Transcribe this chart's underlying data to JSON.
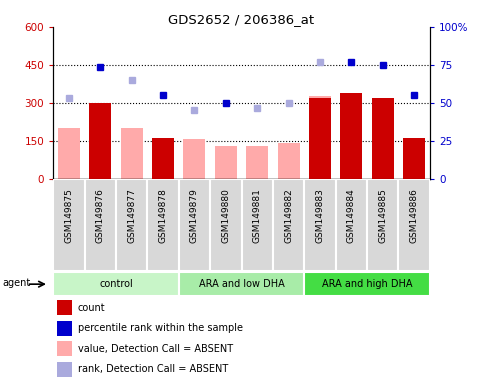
{
  "title": "GDS2652 / 206386_at",
  "samples": [
    "GSM149875",
    "GSM149876",
    "GSM149877",
    "GSM149878",
    "GSM149879",
    "GSM149880",
    "GSM149881",
    "GSM149882",
    "GSM149883",
    "GSM149884",
    "GSM149885",
    "GSM149886"
  ],
  "count_values": [
    0,
    300,
    0,
    160,
    0,
    0,
    0,
    0,
    320,
    340,
    320,
    160
  ],
  "count_absent": [
    true,
    false,
    true,
    false,
    true,
    true,
    true,
    true,
    false,
    false,
    false,
    false
  ],
  "absent_bar_values": [
    200,
    0,
    200,
    0,
    155,
    130,
    130,
    140,
    325,
    0,
    0,
    160
  ],
  "percentile_rank_present": [
    0,
    440,
    0,
    330,
    0,
    300,
    0,
    0,
    0,
    460,
    450,
    330
  ],
  "percentile_rank_absent": [
    320,
    0,
    390,
    0,
    270,
    0,
    280,
    300,
    460,
    0,
    0,
    0
  ],
  "groups": [
    {
      "label": "control",
      "start": 0,
      "end": 3,
      "color": "#c8f5c8"
    },
    {
      "label": "ARA and low DHA",
      "start": 4,
      "end": 7,
      "color": "#a8eca8"
    },
    {
      "label": "ARA and high DHA",
      "start": 8,
      "end": 11,
      "color": "#44dd44"
    }
  ],
  "ylim_left": [
    0,
    600
  ],
  "yticks_left": [
    0,
    150,
    300,
    450,
    600
  ],
  "ytick_labels_left": [
    "0",
    "150",
    "300",
    "450",
    "600"
  ],
  "yticks_right": [
    0,
    25,
    50,
    75,
    100
  ],
  "ytick_labels_right": [
    "0",
    "25",
    "50",
    "75",
    "100%"
  ],
  "dotted_lines": [
    150,
    300,
    450
  ],
  "bar_width": 0.7,
  "bar_color_present": "#cc0000",
  "bar_color_absent": "#ffaaaa",
  "dot_color_present": "#0000cc",
  "dot_color_absent": "#aaaadd",
  "agent_label": "agent",
  "legend_items": [
    {
      "color": "#cc0000",
      "marker": "rect",
      "label": "count"
    },
    {
      "color": "#0000cc",
      "marker": "rect",
      "label": "percentile rank within the sample"
    },
    {
      "color": "#ffaaaa",
      "marker": "rect",
      "label": "value, Detection Call = ABSENT"
    },
    {
      "color": "#aaaadd",
      "marker": "rect",
      "label": "rank, Detection Call = ABSENT"
    }
  ]
}
